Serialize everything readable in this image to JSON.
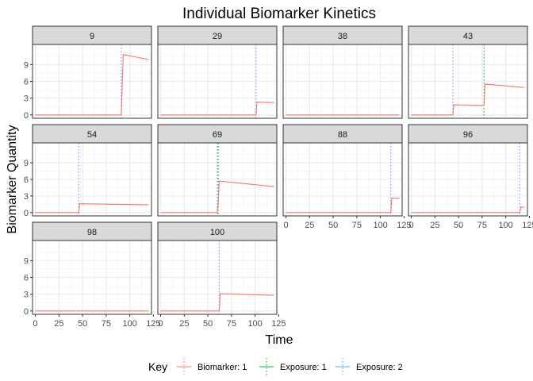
{
  "chart_data": {
    "type": "line",
    "title": "Individual Biomarker Kinetics",
    "xlabel": "Time",
    "ylabel": "Biomarker Quantity",
    "xlim": [
      -3,
      123
    ],
    "ylim": [
      -0.6,
      12.6
    ],
    "x_ticks": [
      0,
      25,
      50,
      75,
      100,
      125
    ],
    "y_ticks": [
      0,
      3,
      6,
      9
    ],
    "x_tick_labels": [
      "0",
      "25",
      "50",
      "75",
      "100",
      "125"
    ],
    "y_tick_labels": [
      "0",
      "3",
      "6",
      "9"
    ],
    "grid": true,
    "legend": {
      "title": "Key",
      "position": "bottom",
      "entries": [
        {
          "label": "Biomarker: 1",
          "color": "#F8766D"
        },
        {
          "label": "Exposure: 1",
          "color": "#00BA38"
        },
        {
          "label": "Exposure: 2",
          "color": "#619CFF"
        }
      ]
    },
    "panels": [
      {
        "label": "9",
        "biomarker": [
          [
            0,
            0
          ],
          [
            91,
            0
          ],
          [
            93,
            10.8
          ],
          [
            120,
            9.9
          ]
        ],
        "exposures": [
          {
            "type": 2,
            "time": 91
          }
        ]
      },
      {
        "label": "29",
        "biomarker": [
          [
            0,
            0
          ],
          [
            101,
            0
          ],
          [
            102,
            2.3
          ],
          [
            120,
            2.2
          ]
        ],
        "exposures": [
          {
            "type": 2,
            "time": 101
          }
        ]
      },
      {
        "label": "38",
        "biomarker": [
          [
            0,
            0
          ],
          [
            120,
            0
          ]
        ],
        "exposures": []
      },
      {
        "label": "43",
        "biomarker": [
          [
            0,
            0
          ],
          [
            44,
            0
          ],
          [
            45,
            1.8
          ],
          [
            77,
            1.7
          ],
          [
            78,
            5.5
          ],
          [
            120,
            4.9
          ]
        ],
        "exposures": [
          {
            "type": 2,
            "time": 44
          },
          {
            "type": 1,
            "time": 77
          }
        ]
      },
      {
        "label": "54",
        "biomarker": [
          [
            0,
            0
          ],
          [
            46,
            0
          ],
          [
            47,
            1.6
          ],
          [
            120,
            1.4
          ]
        ],
        "exposures": [
          {
            "type": 2,
            "time": 46
          }
        ]
      },
      {
        "label": "69",
        "biomarker": [
          [
            0,
            0
          ],
          [
            60,
            0
          ],
          [
            61,
            2.0
          ],
          [
            62,
            5.7
          ],
          [
            120,
            4.7
          ]
        ],
        "exposures": [
          {
            "type": 2,
            "time": 60
          },
          {
            "type": 1,
            "time": 61
          }
        ]
      },
      {
        "label": "88",
        "biomarker": [
          [
            0,
            0
          ],
          [
            111,
            0
          ],
          [
            112,
            2.6
          ],
          [
            120,
            2.6
          ]
        ],
        "exposures": [
          {
            "type": 2,
            "time": 111
          }
        ]
      },
      {
        "label": "96",
        "biomarker": [
          [
            0,
            0
          ],
          [
            115,
            0
          ],
          [
            116,
            1.0
          ],
          [
            120,
            0.95
          ]
        ],
        "exposures": [
          {
            "type": 2,
            "time": 115
          }
        ]
      },
      {
        "label": "98",
        "biomarker": [
          [
            0,
            0
          ],
          [
            120,
            0
          ]
        ],
        "exposures": []
      },
      {
        "label": "100",
        "biomarker": [
          [
            0,
            0
          ],
          [
            62,
            0
          ],
          [
            63,
            3.1
          ],
          [
            120,
            2.8
          ]
        ],
        "exposures": [
          {
            "type": 2,
            "time": 62
          }
        ]
      }
    ]
  }
}
